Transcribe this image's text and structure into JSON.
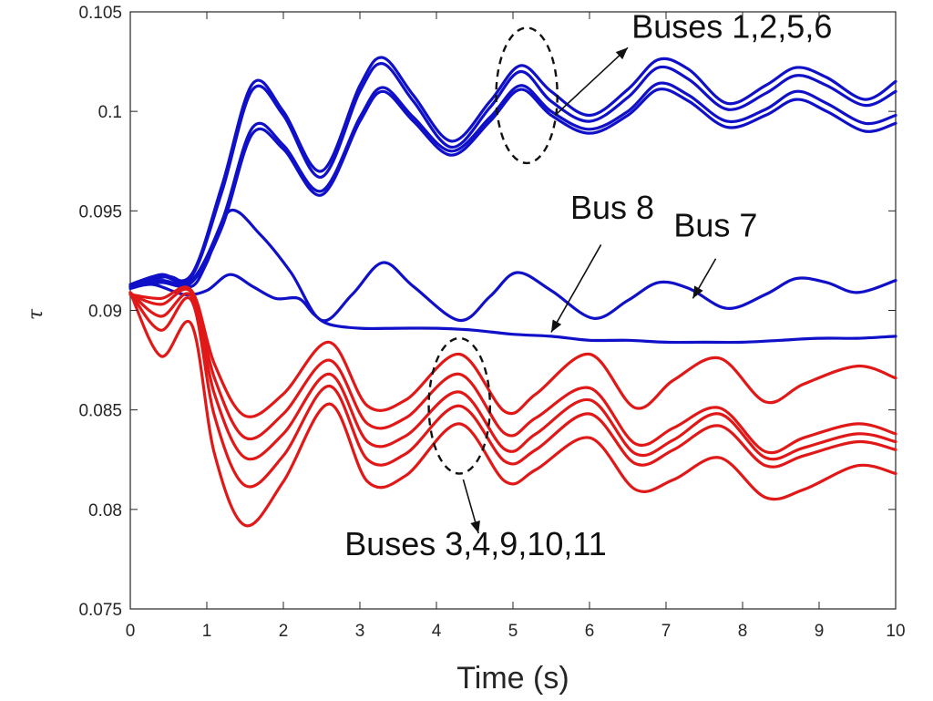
{
  "chart_data": {
    "type": "line",
    "title": "",
    "xlabel": "Time (s)",
    "ylabel": "τ",
    "xlim": [
      0,
      10
    ],
    "ylim": [
      0.075,
      0.105
    ],
    "xticks": [
      0,
      1,
      2,
      3,
      4,
      5,
      6,
      7,
      8,
      9,
      10
    ],
    "xtick_labels": [
      "0",
      "1",
      "2",
      "3",
      "4",
      "5",
      "6",
      "7",
      "8",
      "9",
      "10"
    ],
    "yticks": [
      0.075,
      0.08,
      0.085,
      0.09,
      0.095,
      0.1,
      0.105
    ],
    "ytick_labels": [
      "0.075",
      "0.08",
      "0.085",
      "0.09",
      "0.095",
      "0.1",
      "0.105"
    ],
    "grid": false,
    "colors": {
      "upper_group": "#1010c8",
      "lower_group": "#e01818",
      "axis": "#262626"
    },
    "annotations": [
      {
        "text": "Buses 1,2,5,6",
        "text_at": [
          6.55,
          0.1037
        ],
        "arrow_from": [
          5.55,
          0.0998
        ],
        "arrow_to": [
          6.5,
          0.1032
        ],
        "ellipse": {
          "center": [
            5.18,
            0.1008
          ],
          "radii": [
            0.4,
            0.0034
          ]
        }
      },
      {
        "text": "Bus 8",
        "text_at": [
          5.75,
          0.0946
        ],
        "arrow_from": [
          6.15,
          0.0933
        ],
        "arrow_to": [
          5.5,
          0.0889
        ]
      },
      {
        "text": "Bus 7",
        "text_at": [
          7.1,
          0.0937
        ],
        "arrow_from": [
          7.65,
          0.0926
        ],
        "arrow_to": [
          7.35,
          0.0906
        ]
      },
      {
        "text": "Buses 3,4,9,10,11",
        "text_at": [
          2.8,
          0.0777
        ],
        "arrow_from": [
          4.35,
          0.0815
        ],
        "arrow_to": [
          4.55,
          0.0788
        ],
        "ellipse": {
          "center": [
            4.3,
            0.0852
          ],
          "radii": [
            0.4,
            0.0034
          ]
        }
      }
    ],
    "series": [
      {
        "group": "upper",
        "x": [
          0,
          0.4,
          0.8,
          1.2,
          1.6,
          2.0,
          2.5,
          3.0,
          3.3,
          3.7,
          4.2,
          4.7,
          5.1,
          5.5,
          6.0,
          6.5,
          6.9,
          7.3,
          7.8,
          8.3,
          8.7,
          9.1,
          9.6,
          10.0
        ],
        "y": [
          0.0913,
          0.0918,
          0.0918,
          0.0963,
          0.1014,
          0.1,
          0.097,
          0.1013,
          0.1027,
          0.1008,
          0.0985,
          0.1005,
          0.1023,
          0.101,
          0.0998,
          0.1011,
          0.1026,
          0.1021,
          0.1004,
          0.1013,
          0.1022,
          0.1017,
          0.1006,
          0.1015
        ]
      },
      {
        "group": "upper",
        "x": [
          0,
          0.4,
          0.8,
          1.2,
          1.6,
          2.0,
          2.5,
          3.0,
          3.3,
          3.7,
          4.2,
          4.7,
          5.1,
          5.5,
          6.0,
          6.5,
          6.9,
          7.3,
          7.8,
          8.3,
          8.7,
          9.1,
          9.6,
          10.0
        ],
        "y": [
          0.0912,
          0.0917,
          0.0917,
          0.096,
          0.1011,
          0.0998,
          0.0967,
          0.101,
          0.1024,
          0.1005,
          0.0982,
          0.1002,
          0.102,
          0.1005,
          0.0995,
          0.1007,
          0.1022,
          0.1016,
          0.1001,
          0.1009,
          0.1018,
          0.1013,
          0.1003,
          0.101
        ]
      },
      {
        "group": "upper",
        "x": [
          0,
          0.4,
          0.8,
          1.2,
          1.6,
          2.0,
          2.5,
          3.0,
          3.3,
          3.7,
          4.2,
          4.7,
          5.1,
          5.5,
          6.0,
          6.5,
          6.9,
          7.3,
          7.8,
          8.3,
          8.7,
          9.1,
          9.6,
          10.0
        ],
        "y": [
          0.0912,
          0.0915,
          0.0915,
          0.0945,
          0.0992,
          0.0983,
          0.096,
          0.0997,
          0.1012,
          0.0997,
          0.098,
          0.0997,
          0.1013,
          0.1,
          0.0991,
          0.1,
          0.1014,
          0.1008,
          0.0995,
          0.1001,
          0.101,
          0.1004,
          0.0994,
          0.0998
        ]
      },
      {
        "group": "upper",
        "x": [
          0,
          0.4,
          0.8,
          1.2,
          1.6,
          2.0,
          2.5,
          3.0,
          3.3,
          3.7,
          4.2,
          4.7,
          5.1,
          5.5,
          6.0,
          6.5,
          6.9,
          7.3,
          7.8,
          8.3,
          8.7,
          9.1,
          9.6,
          10.0
        ],
        "y": [
          0.0912,
          0.0914,
          0.0914,
          0.0942,
          0.0989,
          0.0981,
          0.0958,
          0.0995,
          0.101,
          0.0995,
          0.0978,
          0.0995,
          0.1011,
          0.0998,
          0.0989,
          0.0998,
          0.1011,
          0.1005,
          0.0992,
          0.0998,
          0.1006,
          0.1,
          0.099,
          0.0994
        ]
      },
      {
        "group": "upper",
        "name": "Bus 7",
        "x": [
          0,
          0.5,
          0.8,
          1.0,
          1.3,
          1.7,
          2.1,
          2.5,
          2.9,
          3.3,
          3.7,
          4.3,
          4.7,
          5.05,
          5.5,
          6.05,
          6.5,
          6.9,
          7.3,
          7.8,
          8.3,
          8.7,
          9.1,
          9.5,
          10.0
        ],
        "y": [
          0.0912,
          0.0917,
          0.0912,
          0.0924,
          0.095,
          0.0938,
          0.0919,
          0.0895,
          0.0908,
          0.0924,
          0.0912,
          0.0895,
          0.0907,
          0.0919,
          0.091,
          0.0896,
          0.0905,
          0.0914,
          0.0911,
          0.0901,
          0.0908,
          0.0916,
          0.0914,
          0.0909,
          0.0915
        ]
      },
      {
        "group": "upper",
        "name": "Bus 8",
        "x": [
          0,
          0.3,
          0.7,
          1.0,
          1.3,
          1.6,
          1.9,
          2.2,
          2.4,
          2.6,
          3.0,
          3.5,
          4.0,
          4.5,
          5.0,
          5.5,
          6.0,
          6.5,
          7.0,
          7.5,
          8.0,
          8.5,
          9.0,
          9.5,
          10.0
        ],
        "y": [
          0.0911,
          0.0913,
          0.0908,
          0.091,
          0.0918,
          0.0912,
          0.0906,
          0.0906,
          0.0898,
          0.0893,
          0.0891,
          0.0891,
          0.0891,
          0.089,
          0.0888,
          0.0887,
          0.0885,
          0.0885,
          0.0884,
          0.0884,
          0.0884,
          0.0885,
          0.0886,
          0.0886,
          0.0887
        ]
      },
      {
        "group": "lower",
        "x": [
          0,
          0.4,
          0.8,
          1.1,
          1.5,
          2.0,
          2.6,
          3.1,
          3.6,
          4.3,
          4.9,
          5.3,
          6.0,
          6.6,
          7.1,
          7.7,
          8.3,
          8.8,
          9.5,
          10.0
        ],
        "y": [
          0.0908,
          0.0906,
          0.091,
          0.0873,
          0.0847,
          0.0858,
          0.0884,
          0.0852,
          0.0855,
          0.0878,
          0.0849,
          0.0858,
          0.0878,
          0.0851,
          0.0865,
          0.0876,
          0.0854,
          0.0863,
          0.0872,
          0.0866
        ]
      },
      {
        "group": "lower",
        "x": [
          0,
          0.4,
          0.8,
          1.1,
          1.5,
          2.0,
          2.6,
          3.1,
          3.6,
          4.3,
          4.9,
          5.3,
          6.0,
          6.6,
          7.1,
          7.7,
          8.3,
          8.8,
          9.5,
          10.0
        ],
        "y": [
          0.0908,
          0.0903,
          0.0909,
          0.0866,
          0.0836,
          0.0848,
          0.0875,
          0.0843,
          0.0846,
          0.0868,
          0.0838,
          0.0846,
          0.0861,
          0.0833,
          0.0841,
          0.0851,
          0.0829,
          0.0836,
          0.0843,
          0.0838
        ]
      },
      {
        "group": "lower",
        "x": [
          0,
          0.4,
          0.8,
          1.1,
          1.5,
          2.0,
          2.6,
          3.1,
          3.6,
          4.3,
          4.9,
          5.3,
          6.0,
          6.6,
          7.1,
          7.7,
          8.3,
          8.8,
          9.5,
          10.0
        ],
        "y": [
          0.0909,
          0.0897,
          0.0907,
          0.0858,
          0.0826,
          0.0838,
          0.0868,
          0.0834,
          0.0837,
          0.0859,
          0.083,
          0.0838,
          0.0855,
          0.0828,
          0.0835,
          0.0848,
          0.0826,
          0.0831,
          0.0838,
          0.0834
        ]
      },
      {
        "group": "lower",
        "x": [
          0,
          0.4,
          0.8,
          1.1,
          1.5,
          2.0,
          2.6,
          3.1,
          3.6,
          4.3,
          4.9,
          5.3,
          6.0,
          6.6,
          7.1,
          7.7,
          8.3,
          8.8,
          9.5,
          10.0
        ],
        "y": [
          0.0909,
          0.089,
          0.0905,
          0.0847,
          0.0812,
          0.0827,
          0.0862,
          0.0825,
          0.0828,
          0.0852,
          0.0824,
          0.083,
          0.0848,
          0.0823,
          0.083,
          0.0842,
          0.0822,
          0.0827,
          0.0834,
          0.083
        ]
      },
      {
        "group": "lower",
        "x": [
          0,
          0.4,
          0.8,
          1.1,
          1.5,
          2.0,
          2.6,
          3.1,
          3.6,
          4.3,
          4.9,
          5.3,
          6.0,
          6.6,
          7.1,
          7.7,
          8.3,
          8.8,
          9.5,
          10.0
        ],
        "y": [
          0.0909,
          0.0877,
          0.0893,
          0.0828,
          0.0792,
          0.0814,
          0.0853,
          0.0814,
          0.0817,
          0.0843,
          0.0814,
          0.082,
          0.0836,
          0.081,
          0.0815,
          0.0826,
          0.0806,
          0.081,
          0.0822,
          0.0818
        ]
      }
    ]
  }
}
